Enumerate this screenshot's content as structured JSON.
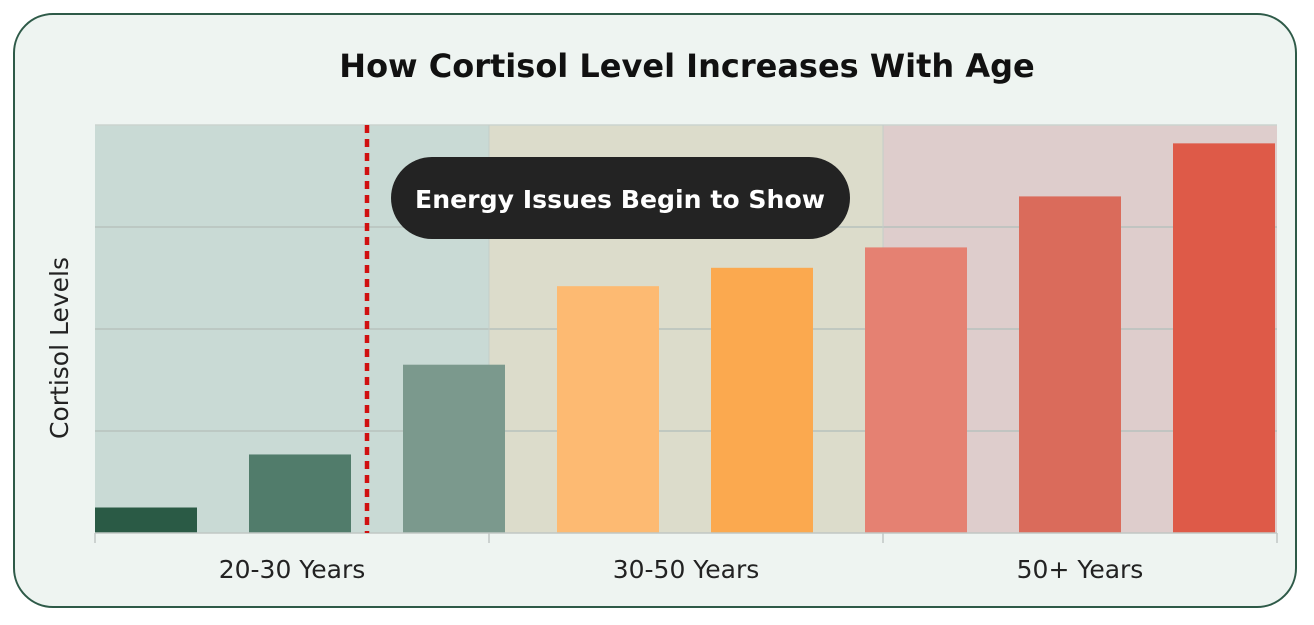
{
  "chart_data": {
    "type": "bar",
    "title": "How Cortisol Level Increases With Age",
    "ylabel": "Cortisol Levels",
    "xlabel": "",
    "ylim": [
      0,
      4
    ],
    "grid": true,
    "legend": "none",
    "groups": [
      {
        "label": "20-30 Years",
        "background": "#c9dad5"
      },
      {
        "label": "30-50 Years",
        "background": "#dcdccb"
      },
      {
        "label": "50+ Years",
        "background": "#decdcc"
      }
    ],
    "bars": [
      {
        "group": 0,
        "value": 0.25,
        "color": "#2a5a45"
      },
      {
        "group": 0,
        "value": 0.77,
        "color": "#517c6b"
      },
      {
        "group": 0,
        "value": 1.65,
        "color": "#7b998d"
      },
      {
        "group": 1,
        "value": 2.42,
        "color": "#fdba72"
      },
      {
        "group": 1,
        "value": 2.6,
        "color": "#fba94f"
      },
      {
        "group": 2,
        "value": 2.8,
        "color": "#e58172"
      },
      {
        "group": 2,
        "value": 3.3,
        "color": "#da6b5b"
      },
      {
        "group": 2,
        "value": 3.82,
        "color": "#de5a48"
      }
    ],
    "annotation": {
      "text": "Energy Issues Begin to Show",
      "marker": "dashed-vertical-line",
      "marker_color": "#d01010"
    }
  }
}
